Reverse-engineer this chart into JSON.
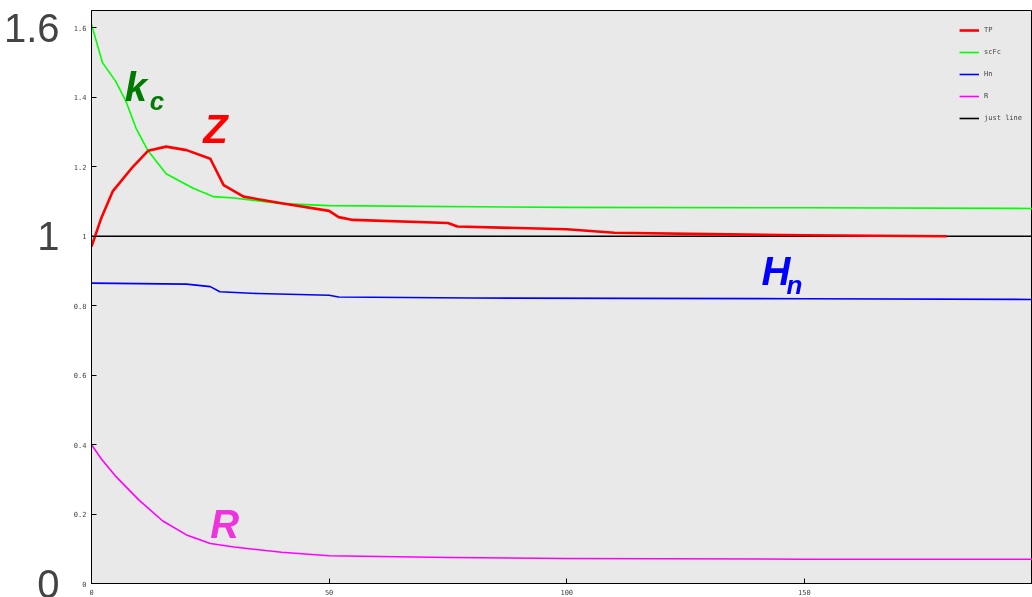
{
  "chart_data": {
    "type": "line",
    "legend": "top right",
    "grid": false,
    "xlim": [
      0,
      198
    ],
    "xticks": [
      0,
      50,
      100,
      150
    ],
    "ylim": [
      0,
      1.65
    ],
    "yticks": [
      0,
      0.2,
      0.4,
      0.6,
      0.8,
      1,
      1.2,
      1.4,
      1.6
    ],
    "y2lim": [
      0,
      1.65
    ],
    "y2ticks": [
      0,
      1,
      1.6
    ],
    "series": [
      {
        "name": "TP",
        "color": "#ff0000",
        "x": [
          0,
          2,
          4.5,
          8.7,
          11.9,
          15.7,
          20,
          25,
          27.8,
          32,
          40,
          50,
          52,
          55,
          75,
          77,
          100,
          110,
          130,
          150,
          180
        ],
        "values": [
          0.97,
          1.05,
          1.13,
          1.2,
          1.246,
          1.258,
          1.248,
          1.223,
          1.147,
          1.114,
          1.095,
          1.073,
          1.055,
          1.047,
          1.038,
          1.028,
          1.02,
          1.01,
          1.006,
          1.003,
          1.0
        ]
      },
      {
        "name": "scFc",
        "color": "#00ff00",
        "x": [
          0,
          2.3,
          5.1,
          7.2,
          9.4,
          11.9,
          15.7,
          21.4,
          25.7,
          30,
          40,
          50,
          100,
          150,
          198
        ],
        "values": [
          1.61,
          1.5,
          1.446,
          1.39,
          1.31,
          1.246,
          1.18,
          1.138,
          1.114,
          1.11,
          1.094,
          1.088,
          1.083,
          1.082,
          1.08
        ]
      },
      {
        "name": "Hn",
        "color": "#0000ff",
        "x": [
          0,
          20,
          25,
          27,
          35,
          50,
          52,
          80,
          150,
          198
        ],
        "values": [
          0.865,
          0.862,
          0.855,
          0.84,
          0.835,
          0.83,
          0.825,
          0.822,
          0.82,
          0.818
        ]
      },
      {
        "name": "R",
        "color": "#ff00ff",
        "x": [
          0,
          2,
          5,
          10,
          15,
          20,
          25,
          30,
          40,
          50,
          75,
          100,
          150,
          198
        ],
        "values": [
          0.4,
          0.36,
          0.31,
          0.24,
          0.18,
          0.14,
          0.115,
          0.105,
          0.09,
          0.08,
          0.075,
          0.072,
          0.07,
          0.07
        ]
      },
      {
        "name": "just line",
        "color": "#000000",
        "x": [
          0,
          198
        ],
        "values": [
          1,
          1
        ]
      }
    ],
    "annotations": [
      "k$_{c}$",
      "Z",
      "H$_{n}$",
      "R"
    ]
  }
}
